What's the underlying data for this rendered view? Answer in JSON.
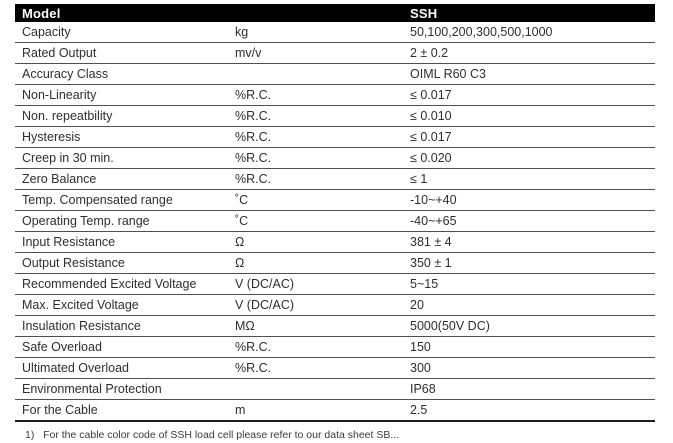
{
  "header": {
    "model_label": "Model",
    "series_label": "SSH"
  },
  "rows": [
    {
      "param": "Capacity",
      "unit": "kg",
      "value": "50,100,200,300,500,1000"
    },
    {
      "param": "Rated Output",
      "unit": "mv/v",
      "value": "2 ± 0.2"
    },
    {
      "param": "Accuracy Class",
      "unit": "",
      "value": "OIML R60 C3"
    },
    {
      "param": "Non-Linearity",
      "unit": "%R.C.",
      "value": "≤ 0.017"
    },
    {
      "param": "Non. repeatbility",
      "unit": "%R.C.",
      "value": "≤ 0.010"
    },
    {
      "param": "Hysteresis",
      "unit": "%R.C.",
      "value": "≤ 0.017"
    },
    {
      "param": "Creep in 30 min.",
      "unit": "%R.C.",
      "value": "≤ 0.020"
    },
    {
      "param": "Zero Balance",
      "unit": "%R.C.",
      "value": "≤ 1"
    },
    {
      "param": "Temp. Compensated range",
      "unit": "˚C",
      "value": "-10~+40"
    },
    {
      "param": "Operating Temp. range",
      "unit": "˚C",
      "value": "-40~+65"
    },
    {
      "param": "Input Resistance",
      "unit": "Ω",
      "value": "381 ± 4"
    },
    {
      "param": "Output Resistance",
      "unit": "Ω",
      "value": "350 ± 1"
    },
    {
      "param": "Recommended Excited Voltage",
      "unit": "V (DC/AC)",
      "value": "5~15"
    },
    {
      "param": "Max. Excited Voltage",
      "unit": "V (DC/AC)",
      "value": "20"
    },
    {
      "param": "Insulation Resistance",
      "unit": "MΩ",
      "value": "5000(50V DC)"
    },
    {
      "param": "Safe Overload",
      "unit": "%R.C.",
      "value": "150"
    },
    {
      "param": "Ultimated Overload",
      "unit": "%R.C.",
      "value": "300"
    },
    {
      "param": "Environmental Protection",
      "unit": "",
      "value": "IP68"
    },
    {
      "param": "For the Cable",
      "unit": "m",
      "value": "2.5"
    }
  ],
  "footnote": "1)   For the cable color code of SSH load cell please refer to our data sheet SB...",
  "colors": {
    "header_bg": "#000000",
    "header_text": "#ffffff",
    "row_text": "#2e2e2e",
    "border": "#4f4f4f"
  }
}
